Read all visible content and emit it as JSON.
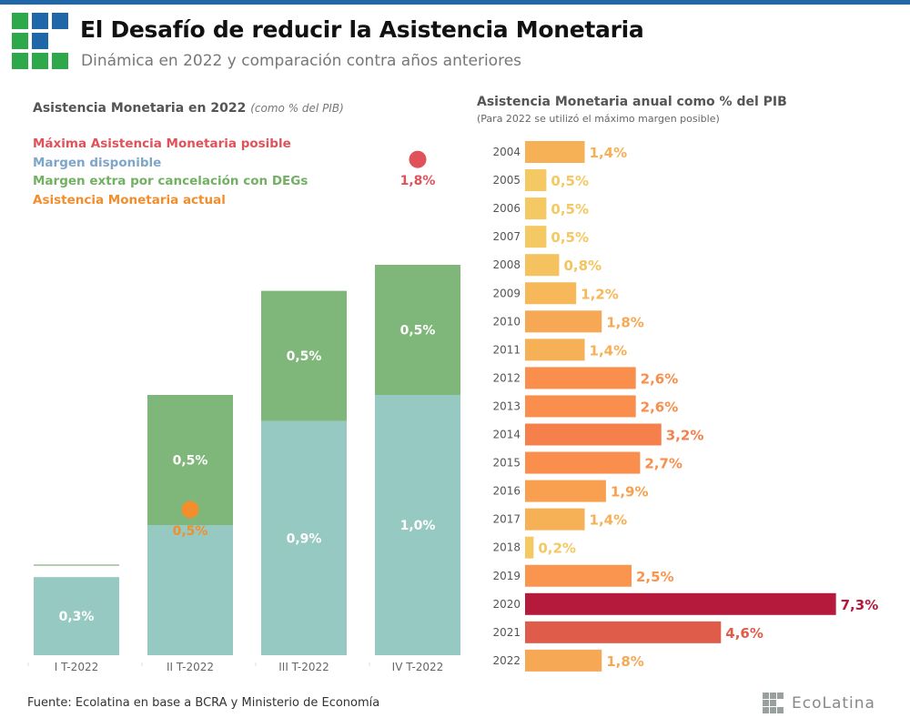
{
  "header": {
    "title": "El Desafío de reducir la Asistencia Monetaria",
    "subtitle": "Dinámica en 2022 y comparación contra años anteriores"
  },
  "footer": {
    "source": "Fuente: Ecolatina en base a BCRA y Ministerio de Economía",
    "brand": "EcoLatina"
  },
  "chart_data": [
    {
      "type": "bar",
      "stacked": true,
      "title": "Asistencia Monetaria en 2022",
      "title_note": "(como % del PIB)",
      "legend": [
        {
          "label": "Máxima Asistencia Monetaria posible",
          "color": "#e0525a"
        },
        {
          "label": "Margen disponible",
          "color": "#7ea6c8"
        },
        {
          "label": "Margen extra por cancelación con DEGs",
          "color": "#72b063"
        },
        {
          "label": "Asistencia Monetaria actual",
          "color": "#f28e2b"
        }
      ],
      "categories": [
        "I T-2022",
        "II T-2022",
        "III T-2022",
        "IV T-2022"
      ],
      "series": [
        {
          "name": "Margen disponible",
          "color": "#97c9c3",
          "values": [
            0.3,
            0.5,
            0.9,
            1.0
          ],
          "labels": [
            "0,3%",
            "",
            "0,9%",
            "1,0%"
          ]
        },
        {
          "name": "Margen extra por cancelación con DEGs",
          "color": "#7fb77a",
          "values": [
            0,
            0.5,
            0.5,
            0.5
          ],
          "labels": [
            "",
            "0,5%",
            "0,5%",
            "0,5%"
          ]
        }
      ],
      "points": [
        {
          "name": "Asistencia Monetaria actual",
          "category": "II T-2022",
          "value": 0.5,
          "label": "0,5%",
          "color": "#f28e2b"
        },
        {
          "name": "Máxima Asistencia Monetaria posible",
          "category": "IV T-2022",
          "value": 1.8,
          "label": "1,8%",
          "color": "#e0525a"
        }
      ],
      "ylim": [
        0,
        2.0
      ]
    },
    {
      "type": "bar",
      "orientation": "horizontal",
      "title": "Asistencia Monetaria anual como % del PIB",
      "subtitle": "(Para 2022 se utilizó el máximo margen posible)",
      "categories": [
        "2004",
        "2005",
        "2006",
        "2007",
        "2008",
        "2009",
        "2010",
        "2011",
        "2012",
        "2013",
        "2014",
        "2015",
        "2016",
        "2017",
        "2018",
        "2019",
        "2020",
        "2021",
        "2022"
      ],
      "values": [
        1.4,
        0.5,
        0.5,
        0.5,
        0.8,
        1.2,
        1.8,
        1.4,
        2.6,
        2.6,
        3.2,
        2.7,
        1.9,
        1.4,
        0.2,
        2.5,
        7.3,
        4.6,
        1.8
      ],
      "labels": [
        "1,4%",
        "0,5%",
        "0,5%",
        "0,5%",
        "0,8%",
        "1,2%",
        "1,8%",
        "1,4%",
        "2,6%",
        "2,6%",
        "3,2%",
        "2,7%",
        "1,9%",
        "1,4%",
        "0,2%",
        "2,5%",
        "7,3%",
        "4,6%",
        "1,8%"
      ],
      "colors": [
        "#f6b056",
        "#f4c862",
        "#f4c862",
        "#f4c862",
        "#f4c35f",
        "#f6b858",
        "#f7a855",
        "#f6b056",
        "#f98e4d",
        "#f98e4d",
        "#f5804b",
        "#f98e4d",
        "#f9a050",
        "#f6b056",
        "#f4c862",
        "#f9954e",
        "#b5193c",
        "#e05c4a",
        "#f7a855"
      ],
      "xlim": [
        0,
        7.3
      ]
    }
  ]
}
